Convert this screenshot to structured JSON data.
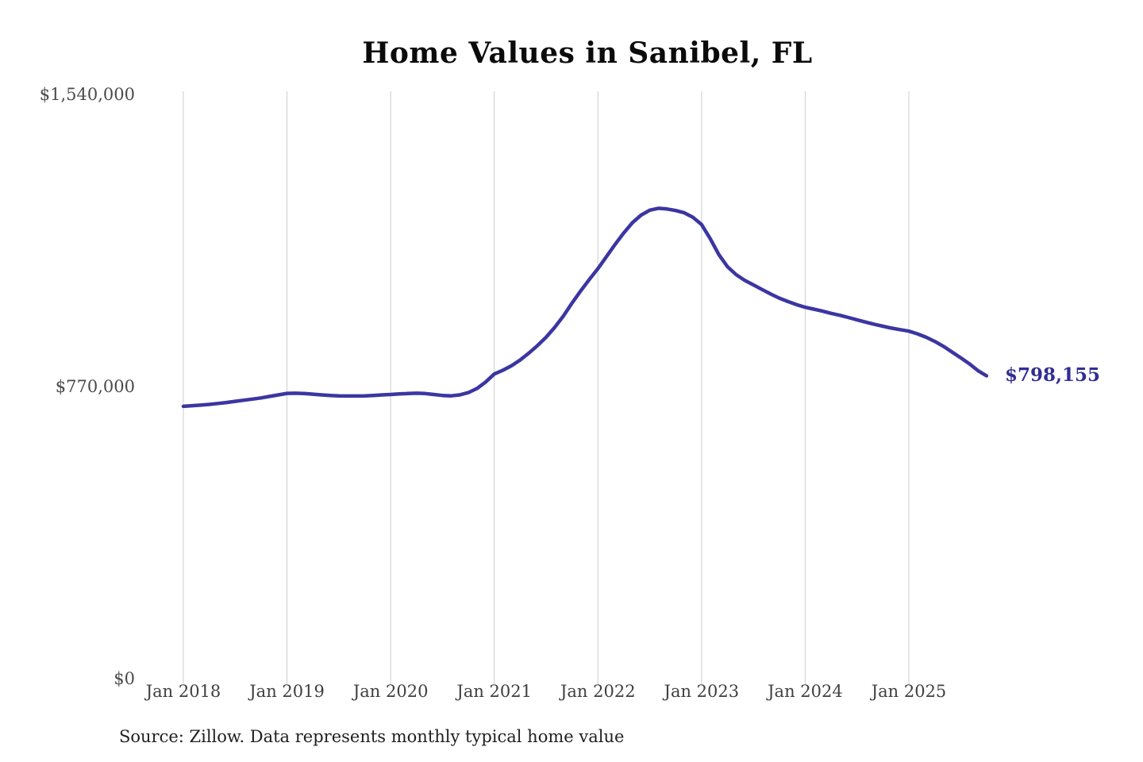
{
  "chart_data": {
    "type": "line",
    "title": "Home Values in Sanibel, FL",
    "source_note": "Source: Zillow. Data represents monthly typical home value",
    "series_name": "Monthly typical home value",
    "unit": "USD",
    "end_label": "$798,155",
    "end_value": 798155,
    "ylim": [
      0,
      1540000
    ],
    "y_ticks": [
      {
        "label": "$0",
        "value": 0
      },
      {
        "label": "$770,000",
        "value": 770000
      },
      {
        "label": "$1,540,000",
        "value": 1540000
      }
    ],
    "x_ticks": [
      {
        "label": "Jan 2018",
        "month_index": 0
      },
      {
        "label": "Jan 2019",
        "month_index": 12
      },
      {
        "label": "Jan 2020",
        "month_index": 24
      },
      {
        "label": "Jan 2021",
        "month_index": 36
      },
      {
        "label": "Jan 2022",
        "month_index": 48
      },
      {
        "label": "Jan 2023",
        "month_index": 60
      },
      {
        "label": "Jan 2024",
        "month_index": 72
      },
      {
        "label": "Jan 2025",
        "month_index": 84
      }
    ],
    "months": [
      "2018-01",
      "2018-02",
      "2018-03",
      "2018-04",
      "2018-05",
      "2018-06",
      "2018-07",
      "2018-08",
      "2018-09",
      "2018-10",
      "2018-11",
      "2018-12",
      "2019-01",
      "2019-02",
      "2019-03",
      "2019-04",
      "2019-05",
      "2019-06",
      "2019-07",
      "2019-08",
      "2019-09",
      "2019-10",
      "2019-11",
      "2019-12",
      "2020-01",
      "2020-02",
      "2020-03",
      "2020-04",
      "2020-05",
      "2020-06",
      "2020-07",
      "2020-08",
      "2020-09",
      "2020-10",
      "2020-11",
      "2020-12",
      "2021-01",
      "2021-02",
      "2021-03",
      "2021-04",
      "2021-05",
      "2021-06",
      "2021-07",
      "2021-08",
      "2021-09",
      "2021-10",
      "2021-11",
      "2021-12",
      "2022-01",
      "2022-02",
      "2022-03",
      "2022-04",
      "2022-05",
      "2022-06",
      "2022-07",
      "2022-08",
      "2022-09",
      "2022-10",
      "2022-11",
      "2022-12",
      "2023-01",
      "2023-02",
      "2023-03",
      "2023-04",
      "2023-05",
      "2023-06",
      "2023-07",
      "2023-08",
      "2023-09",
      "2023-10",
      "2023-11",
      "2023-12",
      "2024-01",
      "2024-02",
      "2024-03",
      "2024-04",
      "2024-05",
      "2024-06",
      "2024-07",
      "2024-08",
      "2024-09",
      "2024-10",
      "2024-11",
      "2024-12",
      "2025-01",
      "2025-02",
      "2025-03",
      "2025-04",
      "2025-05",
      "2025-06",
      "2025-07",
      "2025-08",
      "2025-09",
      "2025-10"
    ],
    "values": [
      718000,
      719500,
      721000,
      723000,
      725500,
      728000,
      731000,
      734000,
      737000,
      740000,
      744000,
      748000,
      752000,
      752500,
      751500,
      750000,
      748000,
      746500,
      745500,
      745000,
      745000,
      745500,
      746500,
      748000,
      749000,
      750500,
      751500,
      752500,
      751500,
      749000,
      746500,
      745500,
      748000,
      754000,
      765000,
      782000,
      803000,
      813000,
      825000,
      840000,
      858000,
      878000,
      900000,
      926000,
      956000,
      990000,
      1022000,
      1052000,
      1081000,
      1113000,
      1145000,
      1175000,
      1202000,
      1222000,
      1235000,
      1240000,
      1238000,
      1234000,
      1228000,
      1216000,
      1197000,
      1160000,
      1118000,
      1086000,
      1065000,
      1050000,
      1038000,
      1026000,
      1014000,
      1003000,
      994000,
      986000,
      979000,
      974000,
      969000,
      963000,
      958000,
      952000,
      946000,
      940000,
      934000,
      929000,
      924000,
      920000,
      916000,
      909000,
      900000,
      889000,
      876000,
      861000,
      846000,
      830000,
      812000,
      798155
    ],
    "line_color": "#3b36a1",
    "end_label_color": "#322e93",
    "grid_color": "#cccccc",
    "grid_on": true,
    "legend": "none"
  }
}
